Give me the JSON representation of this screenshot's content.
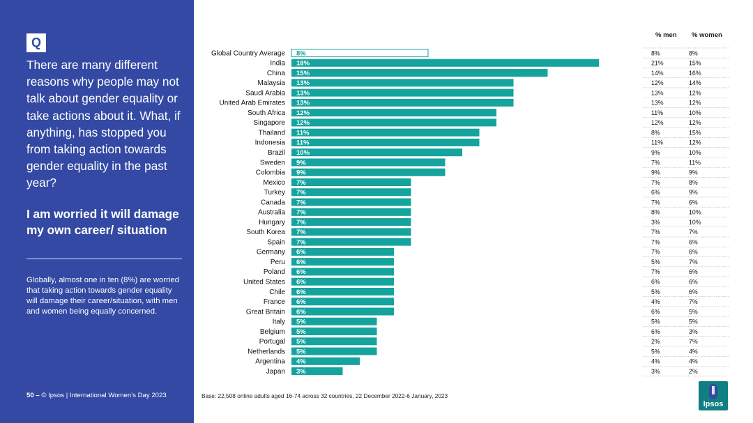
{
  "sidebar": {
    "badge": "Q",
    "question": "There are many different reasons why people may not talk about gender equality or take actions about it.  What, if anything, has stopped you from taking action towards gender equality in the past year?",
    "answer": "I am worried it will damage my own career/ situation",
    "summary": "Globally, almost one in ten (8%) are worried that taking action towards gender equality will damage their career/situation, with men and women being equally concerned.",
    "footer_page": "50 –",
    "footer_text": "© Ipsos | International Women’s Day 2023"
  },
  "base_note": "Base: 22,508 online adults aged 16-74 across 32 countries, 22 December 2022-6 January, 2023",
  "logo": {
    "text": "Ipsos"
  },
  "colors": {
    "sidebar": "#3349a3",
    "bar": "#15a39e",
    "average_outline": "#15a39e"
  },
  "chart_data": {
    "type": "bar",
    "orientation": "horizontal",
    "categories": [
      "Global Country Average",
      "India",
      "China",
      "Malaysia",
      "Saudi Arabia",
      "United Arab Emirates",
      "South Africa",
      "Singapore",
      "Thailand",
      "Indonesia",
      "Brazil",
      "Sweden",
      "Colombia",
      "Mexico",
      "Turkey",
      "Canada",
      "Australia",
      "Hungary",
      "South Korea",
      "Spain",
      "Germany",
      "Peru",
      "Poland",
      "United States",
      "Chile",
      "France",
      "Great Britain",
      "Italy",
      "Belgium",
      "Portugal",
      "Netherlands",
      "Argentina",
      "Japan"
    ],
    "values": [
      8,
      18,
      15,
      13,
      13,
      13,
      12,
      12,
      11,
      11,
      10,
      9,
      9,
      7,
      7,
      7,
      7,
      7,
      7,
      7,
      6,
      6,
      6,
      6,
      6,
      6,
      6,
      5,
      5,
      5,
      5,
      4,
      3
    ],
    "value_labels": [
      "8%",
      "18%",
      "15%",
      "13%",
      "13%",
      "13%",
      "12%",
      "12%",
      "11%",
      "11%",
      "10%",
      "9%",
      "9%",
      "7%",
      "7%",
      "7%",
      "7%",
      "7%",
      "7%",
      "7%",
      "6%",
      "6%",
      "6%",
      "6%",
      "6%",
      "6%",
      "6%",
      "5%",
      "5%",
      "5%",
      "5%",
      "4%",
      "3%"
    ],
    "value_suffix": "%",
    "table": {
      "headers": [
        "% men",
        "% women"
      ],
      "men": [
        "8%",
        "21%",
        "14%",
        "12%",
        "13%",
        "13%",
        "11%",
        "12%",
        "8%",
        "11%",
        "9%",
        "7%",
        "9%",
        "7%",
        "6%",
        "7%",
        "8%",
        "3%",
        "7%",
        "7%",
        "7%",
        "5%",
        "7%",
        "6%",
        "5%",
        "4%",
        "6%",
        "5%",
        "6%",
        "2%",
        "5%",
        "4%",
        "3%"
      ],
      "women": [
        "8%",
        "15%",
        "16%",
        "14%",
        "12%",
        "12%",
        "10%",
        "12%",
        "15%",
        "12%",
        "10%",
        "11%",
        "9%",
        "8%",
        "9%",
        "6%",
        "10%",
        "10%",
        "7%",
        "6%",
        "6%",
        "7%",
        "6%",
        "6%",
        "6%",
        "7%",
        "5%",
        "5%",
        "3%",
        "7%",
        "4%",
        "4%",
        "2%"
      ]
    },
    "highlight_first_as_outline": true
  }
}
